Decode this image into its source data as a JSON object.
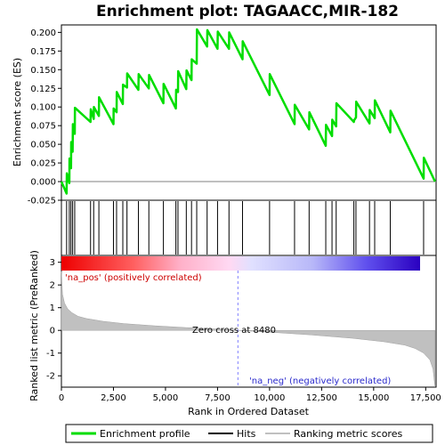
{
  "chart_data": {
    "type": "line",
    "title": "Enrichment plot: TAGAACC,MIR-182",
    "panels": {
      "enrichment": {
        "ylabel": "Enrichment score (ES)",
        "ylim": [
          -0.025,
          0.21
        ],
        "yticks": [
          -0.025,
          0.0,
          0.025,
          0.05,
          0.075,
          0.1,
          0.125,
          0.15,
          0.175,
          0.2
        ],
        "ytick_labels": [
          "-0.025",
          "0.000",
          "0.025",
          "0.050",
          "0.075",
          "0.100",
          "0.125",
          "0.150",
          "0.175",
          "0.200"
        ],
        "series": [
          {
            "name": "Enrichment profile",
            "color": "#00dd00",
            "x": [
              0,
              250,
              260,
              380,
              390,
              460,
              470,
              540,
              550,
              640,
              650,
              1400,
              1410,
              1550,
              1560,
              1800,
              1810,
              2500,
              2510,
              2650,
              2660,
              2950,
              2960,
              3150,
              3160,
              3700,
              3710,
              4200,
              4210,
              4900,
              4910,
              5500,
              5510,
              5600,
              5610,
              6000,
              6010,
              6250,
              6260,
              6500,
              6510,
              7000,
              7010,
              7500,
              7510,
              8050,
              8060,
              8700,
              8710,
              10000,
              10010,
              11200,
              11210,
              11900,
              11910,
              12700,
              12710,
              13000,
              13010,
              13200,
              13210,
              14050,
              14060,
              14150,
              14160,
              14800,
              14810,
              15050,
              15060,
              15800,
              15810,
              17400,
              17410,
              17950
            ],
            "y": [
              0.0,
              -0.016,
              0.011,
              -0.002,
              0.031,
              0.018,
              0.053,
              0.04,
              0.077,
              0.064,
              0.099,
              0.08,
              0.097,
              0.084,
              0.1,
              0.088,
              0.113,
              0.077,
              0.098,
              0.093,
              0.12,
              0.104,
              0.13,
              0.126,
              0.145,
              0.123,
              0.144,
              0.125,
              0.143,
              0.105,
              0.131,
              0.098,
              0.123,
              0.12,
              0.148,
              0.124,
              0.149,
              0.136,
              0.164,
              0.158,
              0.204,
              0.181,
              0.203,
              0.178,
              0.201,
              0.178,
              0.2,
              0.164,
              0.188,
              0.116,
              0.144,
              0.077,
              0.103,
              0.07,
              0.093,
              0.048,
              0.076,
              0.061,
              0.083,
              0.074,
              0.105,
              0.08,
              0.082,
              0.086,
              0.107,
              0.078,
              0.096,
              0.085,
              0.109,
              0.066,
              0.095,
              0.004,
              0.032,
              0.0
            ]
          }
        ]
      },
      "hits": {
        "label": "Hits",
        "x": [
          250,
          380,
          460,
          540,
          640,
          1400,
          1550,
          1800,
          2500,
          2650,
          2950,
          3150,
          3700,
          4200,
          4900,
          5500,
          5600,
          6000,
          6250,
          6500,
          7000,
          7500,
          8050,
          8700,
          10000,
          11200,
          11900,
          12700,
          13000,
          13200,
          14050,
          14150,
          14800,
          15050,
          15800,
          17400
        ]
      },
      "ranked_metric": {
        "name": "Ranking metric scores",
        "ylabel": "Ranked list metric (PreRanked)",
        "xlabel": "Rank in Dataset",
        "xlabel_full": "Rank in Ordered Dataset",
        "xlim": [
          0,
          18000
        ],
        "xticks": [
          0,
          2500,
          5000,
          7500,
          10000,
          12500,
          15000,
          17500
        ],
        "xtick_labels": [
          "0",
          "2,500",
          "5,000",
          "7,500",
          "10,000",
          "12,500",
          "15,000",
          "17,500"
        ],
        "ylim": [
          -2.5,
          3.3
        ],
        "yticks": [
          -2,
          -1,
          0,
          1,
          2,
          3
        ],
        "ytick_labels": [
          "-2",
          "-1",
          "0",
          "1",
          "2",
          "3"
        ],
        "x": [
          0,
          50,
          150,
          300,
          500,
          800,
          1200,
          2000,
          3000,
          4500,
          6000,
          7500,
          8480,
          10000,
          12000,
          14000,
          15500,
          16500,
          17000,
          17400,
          17700,
          17850,
          17950
        ],
        "y": [
          2.6,
          1.6,
          1.2,
          0.95,
          0.78,
          0.62,
          0.52,
          0.4,
          0.3,
          0.2,
          0.12,
          0.06,
          0.0,
          -0.08,
          -0.2,
          -0.35,
          -0.5,
          -0.65,
          -0.8,
          -1.0,
          -1.3,
          -1.7,
          -2.5
        ],
        "zero_cross": 8480,
        "zero_cross_label": "Zero cross at 8480",
        "pos_label": "'na_pos' (positively correlated)",
        "neg_label": "'na_neg' (negatively correlated)",
        "color": "#c0c0c0"
      }
    },
    "legend": {
      "position": "bottom",
      "entries": [
        {
          "label": "Enrichment profile",
          "color": "#00dd00"
        },
        {
          "label": "Hits",
          "color": "#000000"
        },
        {
          "label": "Ranking metric scores",
          "color": "#c0c0c0"
        }
      ]
    }
  }
}
